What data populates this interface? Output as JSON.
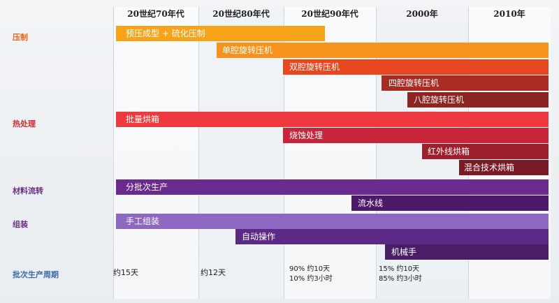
{
  "headers": [
    "20世纪70年代",
    "20世纪80年代",
    "20世纪90年代",
    "2000年",
    "2010年"
  ],
  "categories": {
    "press": "压制",
    "heat": "热处理",
    "material": "材料流转",
    "assembly": "组装",
    "cycle": "批次生产周期"
  },
  "bars": {
    "press1": "预压成型 + 硫化压制",
    "press2": "单腔旋转压机",
    "press3": "双腔旋转压机",
    "press4": "四腔旋转压机",
    "press5": "八腔旋转压机",
    "heat1": "批量烘箱",
    "heat2": "烧蚀处理",
    "heat3": "红外线烘箱",
    "heat4": "混合技术烘箱",
    "mat1": "分批次生产",
    "mat2": "流水线",
    "asm1": "手工组装",
    "asm2": "自动操作",
    "asm3": "机械手"
  },
  "cycle": {
    "c70": "约15天",
    "c80": "约12天",
    "c90_line1": "90% 约10天",
    "c90_line2": "10% 约3小时",
    "c00_line1": "15% 约10天",
    "c00_line2": "85% 约3小时"
  }
}
